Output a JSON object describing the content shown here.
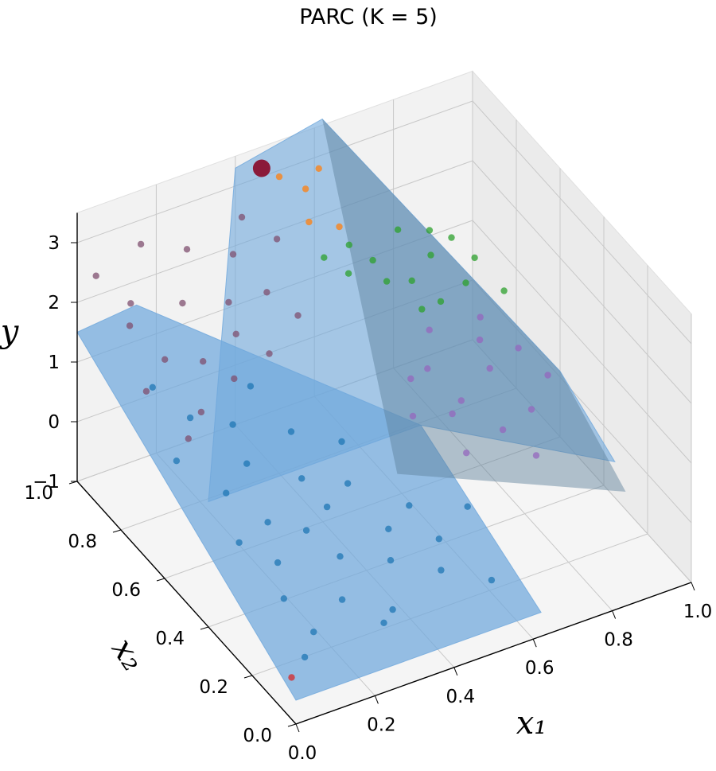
{
  "chart_data": {
    "type": "scatter",
    "title": "PARC (K = 5)",
    "xlabel": "x₁",
    "ylabel": "x₂",
    "zlabel": "y",
    "xlim": [
      0.0,
      1.0
    ],
    "ylim": [
      0.0,
      1.0
    ],
    "zlim": [
      -1,
      3.5
    ],
    "x_ticks": [
      "0.0",
      "0.2",
      "0.4",
      "0.6",
      "0.8",
      "1.0"
    ],
    "y_ticks": [
      "0.0",
      "0.2",
      "0.4",
      "0.6",
      "0.8",
      "1.0"
    ],
    "z_ticks": [
      "−1",
      "0",
      "1",
      "2",
      "3"
    ],
    "grid": true,
    "surface_color": "#6fa8dc",
    "series": [
      {
        "color": "#1f77b4",
        "points": [
          [
            0.05,
            0.05,
            -0.2
          ],
          [
            0.1,
            0.1,
            -0.1
          ],
          [
            0.08,
            0.2,
            0.1
          ],
          [
            0.12,
            0.3,
            0.2
          ],
          [
            0.2,
            0.15,
            0.0
          ],
          [
            0.25,
            0.25,
            0.2
          ],
          [
            0.3,
            0.1,
            -0.2
          ],
          [
            0.35,
            0.2,
            0.1
          ],
          [
            0.15,
            0.4,
            0.4
          ],
          [
            0.22,
            0.35,
            0.3
          ],
          [
            0.4,
            0.3,
            0.1
          ],
          [
            0.45,
            0.15,
            -0.1
          ],
          [
            0.3,
            0.4,
            0.3
          ],
          [
            0.05,
            0.35,
            0.5
          ],
          [
            0.1,
            0.5,
            0.6
          ],
          [
            0.18,
            0.55,
            0.7
          ],
          [
            0.28,
            0.48,
            0.5
          ],
          [
            0.38,
            0.45,
            0.3
          ],
          [
            0.48,
            0.35,
            0.1
          ],
          [
            0.5,
            0.25,
            -0.1
          ],
          [
            0.55,
            0.1,
            -0.3
          ],
          [
            0.2,
            0.65,
            0.9
          ],
          [
            0.12,
            0.7,
            1.0
          ],
          [
            0.32,
            0.6,
            0.7
          ],
          [
            0.42,
            0.55,
            0.5
          ],
          [
            0.03,
            0.6,
            0.9
          ],
          [
            0.25,
            0.05,
            -0.1
          ],
          [
            0.6,
            0.3,
            0.0
          ],
          [
            0.08,
            0.8,
            1.2
          ],
          [
            0.3,
            0.75,
            0.9
          ]
        ]
      },
      {
        "color": "#9467bd",
        "points": [
          [
            0.7,
            0.55,
            0.3
          ],
          [
            0.75,
            0.6,
            0.2
          ],
          [
            0.8,
            0.5,
            0.0
          ],
          [
            0.85,
            0.65,
            0.3
          ],
          [
            0.9,
            0.55,
            -0.1
          ],
          [
            0.95,
            0.7,
            0.2
          ],
          [
            0.72,
            0.7,
            0.4
          ],
          [
            0.88,
            0.75,
            0.3
          ],
          [
            0.78,
            0.8,
            0.5
          ],
          [
            0.65,
            0.65,
            0.6
          ],
          [
            0.98,
            0.62,
            0.0
          ],
          [
            0.92,
            0.82,
            0.3
          ],
          [
            0.68,
            0.45,
            0.1
          ],
          [
            0.84,
            0.42,
            -0.2
          ],
          [
            0.6,
            0.55,
            0.5
          ]
        ]
      },
      {
        "color": "#2ca02c",
        "points": [
          [
            0.72,
            0.95,
            1.2
          ],
          [
            0.78,
            0.88,
            1.0
          ],
          [
            0.85,
            0.92,
            1.1
          ],
          [
            0.9,
            0.85,
            0.8
          ],
          [
            0.95,
            0.9,
            0.9
          ],
          [
            0.7,
            0.85,
            1.3
          ],
          [
            0.8,
            0.98,
            1.4
          ],
          [
            0.88,
            0.98,
            1.2
          ],
          [
            0.98,
            0.82,
            0.6
          ],
          [
            0.75,
            0.78,
            1.0
          ],
          [
            0.62,
            0.88,
            1.5
          ],
          [
            0.66,
            0.95,
            1.6
          ],
          [
            0.93,
            0.97,
            1.0
          ],
          [
            0.82,
            0.82,
            0.8
          ],
          [
            0.58,
            0.92,
            1.7
          ]
        ]
      },
      {
        "color": "#7f4f6f",
        "points": [
          [
            0.02,
            0.95,
            2.6
          ],
          [
            0.08,
            0.9,
            2.2
          ],
          [
            0.15,
            0.98,
            2.7
          ],
          [
            0.2,
            0.88,
            2.0
          ],
          [
            0.1,
            0.78,
            1.7
          ],
          [
            0.25,
            0.95,
            2.5
          ],
          [
            0.3,
            0.85,
            1.9
          ],
          [
            0.05,
            0.85,
            2.1
          ],
          [
            0.18,
            0.75,
            1.6
          ],
          [
            0.35,
            0.92,
            2.3
          ],
          [
            0.28,
            0.78,
            1.7
          ],
          [
            0.4,
            0.97,
            2.6
          ],
          [
            0.02,
            0.72,
            1.6
          ],
          [
            0.12,
            0.65,
            1.3
          ],
          [
            0.22,
            0.68,
            1.5
          ],
          [
            0.32,
            0.7,
            1.6
          ],
          [
            0.38,
            0.82,
            2.0
          ],
          [
            0.45,
            0.9,
            2.4
          ],
          [
            0.06,
            0.6,
            1.2
          ],
          [
            0.42,
            0.75,
            1.8
          ]
        ]
      },
      {
        "color": "#ff7f0e",
        "points": [
          [
            0.5,
            0.98,
            3.0
          ],
          [
            0.55,
            0.95,
            2.8
          ],
          [
            0.6,
            0.98,
            2.9
          ],
          [
            0.52,
            0.88,
            2.6
          ],
          [
            0.58,
            0.85,
            2.5
          ]
        ]
      },
      {
        "color": "#d62728",
        "points": [
          [
            0.0,
            0.02,
            -0.3
          ]
        ]
      }
    ],
    "highlight_point": {
      "x": 0.45,
      "y": 0.97,
      "z": 3.3,
      "color": "#8b1a3a"
    }
  }
}
